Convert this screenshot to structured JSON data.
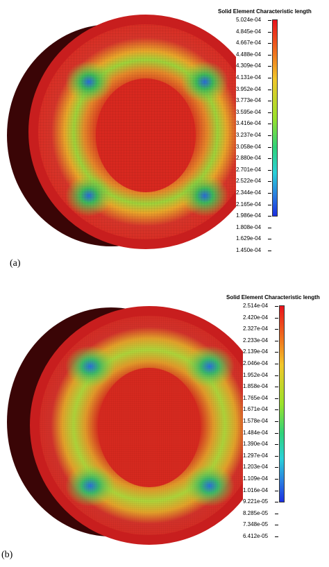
{
  "panels": [
    {
      "label": "(a)",
      "legend_title": "Solid Element Characteristic length",
      "legend_values": [
        "5.024e-04",
        "4.845e-04",
        "4.667e-04",
        "4.488e-04",
        "4.309e-04",
        "4.131e-04",
        "3.952e-04",
        "3.773e-04",
        "3.595e-04",
        "3.416e-04",
        "3.237e-04",
        "3.058e-04",
        "2.880e-04",
        "2.701e-04",
        "2.522e-04",
        "2.344e-04",
        "2.165e-04",
        "1.986e-04",
        "1.808e-04",
        "1.629e-04",
        "1.450e-04"
      ]
    },
    {
      "label": "(b)",
      "legend_title": "Solid Element Characteristic length",
      "legend_values": [
        "2.514e-04",
        "2.420e-04",
        "2.327e-04",
        "2.233e-04",
        "2.139e-04",
        "2.046e-04",
        "1.952e-04",
        "1.858e-04",
        "1.765e-04",
        "1.671e-04",
        "1.578e-04",
        "1.484e-04",
        "1.390e-04",
        "1.297e-04",
        "1.203e-04",
        "1.109e-04",
        "1.016e-04",
        "9.221e-05",
        "8.285e-05",
        "7.348e-05",
        "6.412e-05"
      ]
    }
  ],
  "colors": {
    "scale_top": "#e8121c",
    "scale_mid": "#9be22a",
    "scale_bottom": "#1b2fe0",
    "body_dark": "#3a0506",
    "face_red": "#d92b22",
    "ring_orange": "#e8a02a",
    "zone_green": "#5cc24a"
  }
}
